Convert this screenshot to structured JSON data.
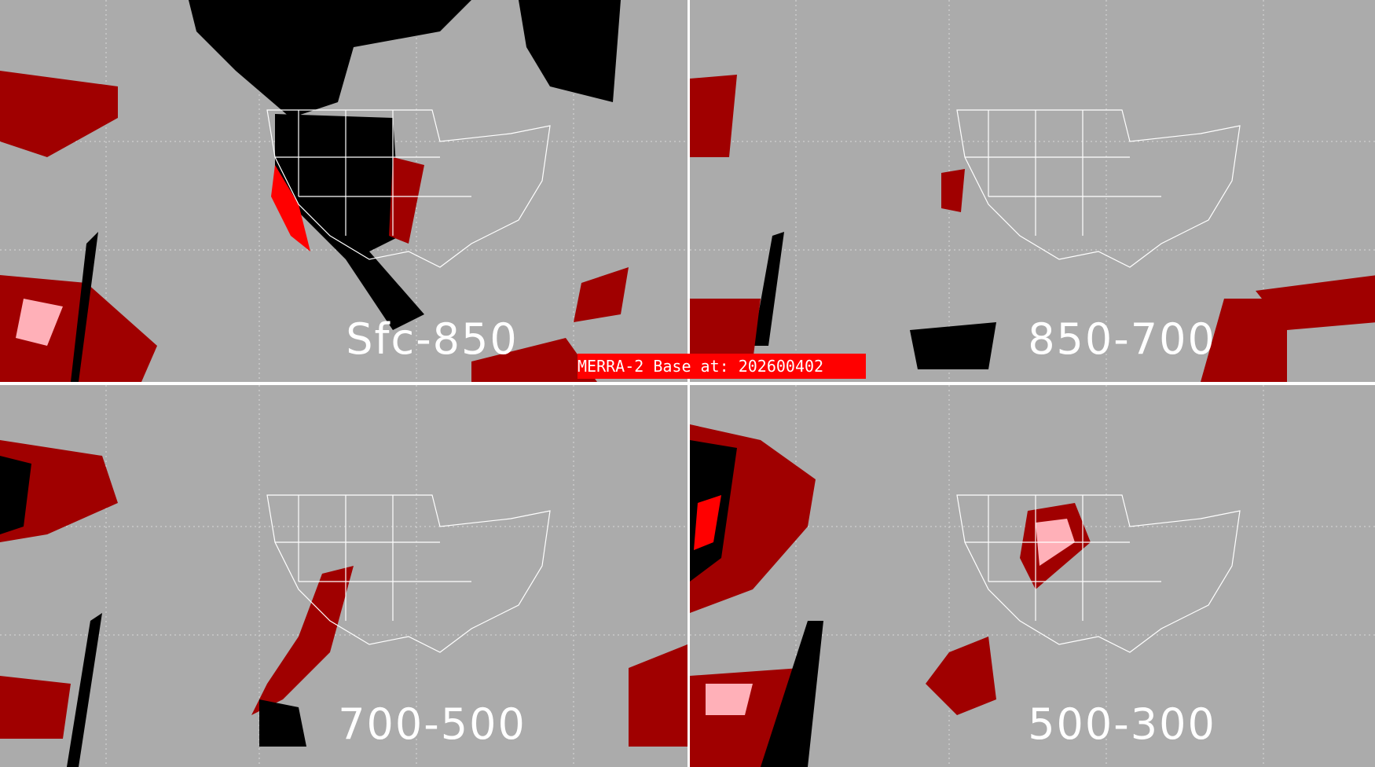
{
  "title": "MERRA-2 Base at: 202600402",
  "panels": [
    {
      "label": "Sfc-850"
    },
    {
      "label": "850-700"
    },
    {
      "label": "700-500"
    },
    {
      "label": "500-300"
    }
  ],
  "colors": {
    "background": "#ababab",
    "dark_red": "#a00000",
    "red": "#ff0000",
    "pink": "#ffb0b8",
    "black": "#000000",
    "outline": "#ffffff"
  }
}
